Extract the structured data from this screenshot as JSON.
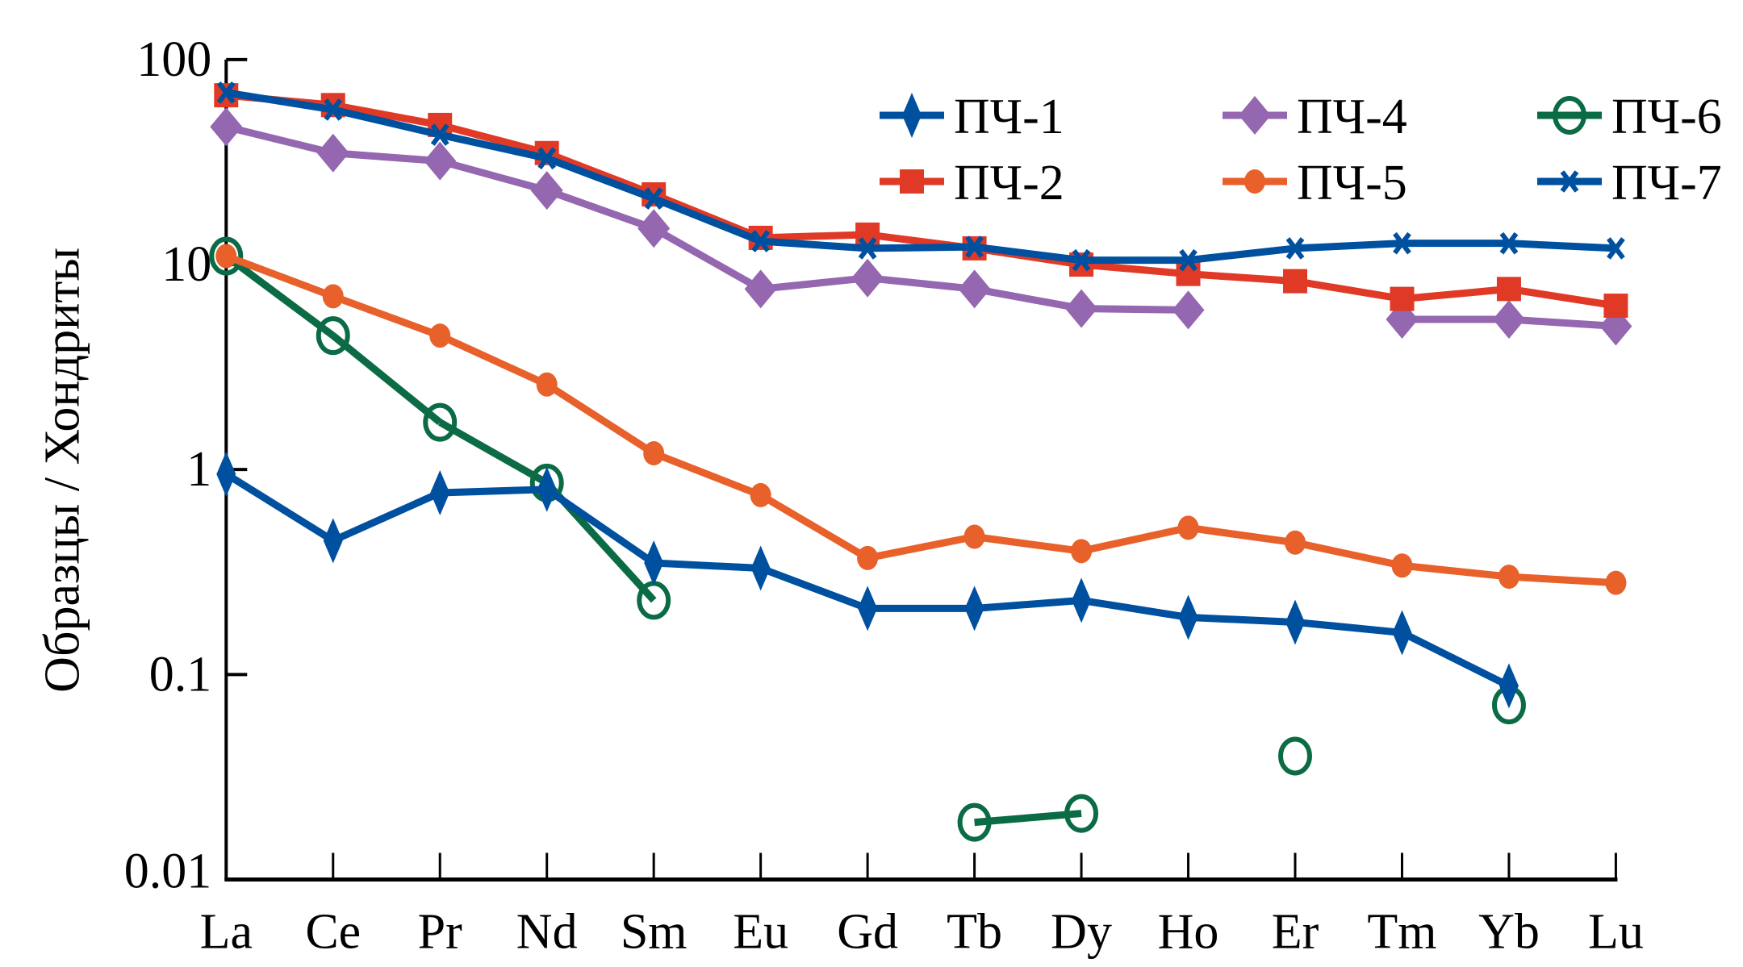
{
  "chart_data": {
    "type": "line",
    "title": "",
    "xlabel": "",
    "ylabel": "Образцы / Хондриты",
    "yscale": "log",
    "ylim": [
      0.01,
      100
    ],
    "yticks": [
      100,
      10,
      1,
      0.1,
      0.01
    ],
    "ytick_labels": [
      "100",
      "10",
      "1",
      "0.1",
      "0.01"
    ],
    "categories": [
      "La",
      "Ce",
      "Pr",
      "Nd",
      "Sm",
      "Eu",
      "Gd",
      "Tb",
      "Dy",
      "Ho",
      "Er",
      "Tm",
      "Yb",
      "Lu"
    ],
    "grid": false,
    "legend": "top-right",
    "series": [
      {
        "name": "ПЧ-1",
        "color": "#0050a0",
        "marker": "thin-diamond",
        "values": [
          0.95,
          0.45,
          0.77,
          0.8,
          0.35,
          0.33,
          0.21,
          0.21,
          0.23,
          0.19,
          0.18,
          0.16,
          0.088,
          null
        ]
      },
      {
        "name": "ПЧ-2",
        "color": "#e03a26",
        "marker": "square",
        "values": [
          67,
          60,
          48,
          35,
          22,
          13.5,
          14,
          12,
          10,
          9,
          8.3,
          6.8,
          7.6,
          6.3
        ]
      },
      {
        "name": "ПЧ-4",
        "color": "#9467b0",
        "marker": "diamond",
        "values": [
          47,
          35,
          32,
          23,
          15,
          7.6,
          8.6,
          7.6,
          6.1,
          6.0,
          null,
          5.4,
          5.4,
          5.0
        ]
      },
      {
        "name": "ПЧ-5",
        "color": "#e8602a",
        "marker": "circle",
        "values": [
          11,
          7.0,
          4.5,
          2.6,
          1.2,
          0.75,
          0.37,
          0.47,
          0.4,
          0.52,
          0.44,
          0.34,
          0.3,
          0.28
        ]
      },
      {
        "name": "ПЧ-6",
        "color": "#0a6b45",
        "marker": "open-circle",
        "values": [
          11,
          4.5,
          1.7,
          0.86,
          0.23,
          null,
          null,
          0.019,
          0.021,
          null,
          0.04,
          null,
          0.071,
          null
        ]
      },
      {
        "name": "ПЧ-7",
        "color": "#0050a0",
        "marker": "x",
        "values": [
          69,
          57,
          43,
          33,
          21,
          13,
          12,
          12.2,
          10.5,
          10.5,
          12,
          12.7,
          12.7,
          12
        ]
      }
    ]
  }
}
